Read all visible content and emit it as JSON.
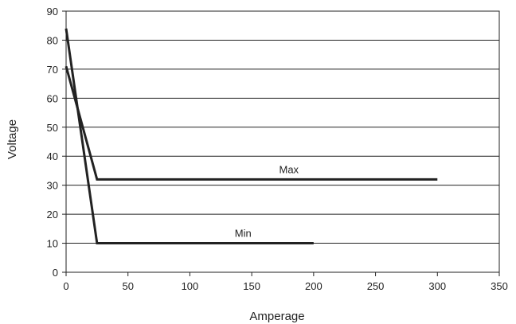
{
  "chart_data": {
    "type": "line",
    "title": "",
    "xlabel": "Amperage",
    "ylabel": "Voltage",
    "xlim": [
      0,
      350
    ],
    "ylim": [
      0,
      90
    ],
    "x_ticks": [
      0,
      50,
      100,
      150,
      200,
      250,
      300,
      350
    ],
    "y_ticks": [
      0,
      10,
      20,
      30,
      40,
      50,
      60,
      70,
      80,
      90
    ],
    "grid": "horizontal",
    "series": [
      {
        "name": "Max",
        "label_at": [
          180,
          32
        ],
        "x": [
          0,
          25,
          300
        ],
        "y": [
          71,
          32,
          32
        ]
      },
      {
        "name": "Min",
        "label_at": [
          143,
          10
        ],
        "x": [
          0,
          25,
          200
        ],
        "y": [
          84,
          10,
          10
        ]
      }
    ],
    "colors": {
      "line": "#222222",
      "grid": "#222222",
      "axis": "#222222"
    }
  }
}
